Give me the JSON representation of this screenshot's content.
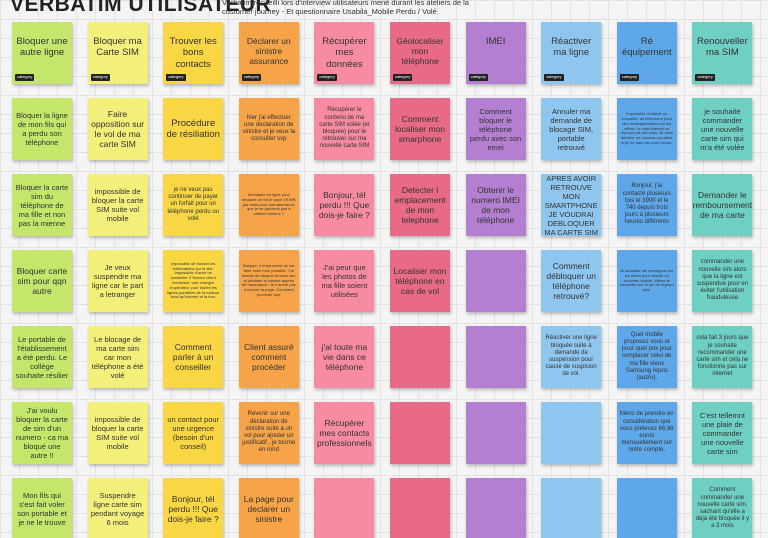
{
  "header": {
    "title": "VERBATIM UTILISATEUR",
    "subtitle": "Verbatim recueilli lors d'interview utilisateurs mené durant les ateliers de la customer journey - Et questionnaire Usabila_Mobile Perdu / Volé"
  },
  "tag": "category",
  "columns": [
    {
      "color": "#c3e66b",
      "notes": [
        "Bloquer une autre ligne",
        "Bloquer la ligne de mon fils qui a perdu son téléphone",
        "Bloquer la carte sim du téléphone de ma fille et non pas la mienne",
        "Bloquer carte sim pour qqn autre",
        "Le portable de l'établissement a été perdu. Le collège souhaite résilier",
        "J'ai voulu bloquer la carte de sim d'un numero - ca ma bloqué une autre !!",
        "Mon fils qui s'est fait voler son portable et je ne le trouve"
      ]
    },
    {
      "color": "#f3ef7b",
      "notes": [
        "Bloquer ma Carte SIM",
        "Faire opposition sur le vol de ma carte SIM",
        "impossible de bloquer la carte SIM suite vol mobile",
        "Je veux suspendre ma ligne car le part a letranger",
        "Le blocage de ma carte sim car mon téléphone a été volé",
        "impossible de bloquer la carte SIM suite vol mobile",
        "Suspendre ligne carte sim pendant voyage 6 mois"
      ]
    },
    {
      "color": "#f8d644",
      "notes": [
        "Trouver les bons contacts",
        "Procédure de résiliation",
        "je ne veux pas continuer de payer un forfait pour un téléphone perdu ou volé",
        "impossible de trouver les informations sur le site. Impossible d'avoir un conseiller !! Service client inexistant, valz changer d'opérateur pour toutes les lignes portables de la maison ainsi qu'internet et la box.",
        "Comment parler à un conseiller",
        "un contact pour une urgence (besoin d'un conseil)",
        "Bonjour, tél perdu !!! Que dois-je faire ?"
      ]
    },
    {
      "color": "#f6a447",
      "notes": [
        "Déclarer un sinistre assurance",
        "hier j'ai effectuer une declaration de sinistre et je veux la consulter svp",
        "formulaire en ligne pour déclarer un vol je paye 19.90€ par mois pour une assurance que je ne parviens pas à utiliser honteux !!",
        "Bonjour, il m'est arrivé de me faire voler mon portable. J'ai besoin de bloquer la carte sim et déclarer le sinistre auprès de l'assurance. Je n'arrive pas à trouver la page. Comment procéder svp.",
        "Client assuré comment procéder",
        "Revenir sur une déclaration de sinistre suite à un vol pour ajouter un justificatif , je tourne en rond",
        "La page pour declarer un sinistre"
      ]
    },
    {
      "color": "#f68ba2",
      "notes": [
        "Récupérer mes données",
        "Récupérer le contenu de ma carte SIM volée (et bloquée) pour le retrouver sur ma nouvelle carte SIM",
        "Bonjour, tél perdu !!! Que dois-je faire ?",
        "J'ai peur que les photos de ma fille soient utilisées",
        "j'ai toute ma vie dans ce téléphone",
        "Récupérer mes contacts professionnels",
        null
      ]
    },
    {
      "color": "#e96a86",
      "notes": [
        "Géolocaliser mon téléphone",
        "Comment localiser mon smarphone",
        "Detecter l emplacement de mon telephone",
        "Localiser mon téléphone en cas de vol",
        null,
        null,
        null
      ]
    },
    {
      "color": "#b47fd0",
      "notes": [
        "IMEI",
        "Comment bloquer le téléphone perdu avec son emei",
        "Obtenir le numero IMEI de mon téléphone",
        null,
        null,
        null,
        null
      ]
    },
    {
      "color": "#8fc6ef",
      "notes": [
        "Réactiver ma ligne",
        "Annuler ma demande de blocage SIM, portable retrouvé",
        "APRES AVOIR RETROUVE MON SMARTPHONE JE VOUDRAI DEBLOQUER MA CARTE SIM",
        "Comment débloquer un téléphone retrouvé?",
        "Réactiver une ligne bloquée suite à demande de suspension pour cause de suspicion de vol.",
        null,
        null
      ]
    },
    {
      "color": "#5ea8e9",
      "notes": [
        "Ré équipement",
        "Impossible d'obtenir un conseiller au téléphone pour des renseignements sur les offres. Le chat internet ne répond pas non plus. Je veux acheter un nouveau portable et je ne sais pas quoi choisir.",
        "Bonjour, j'ai contacté plusieurs fois le 3900 et le 740 depuis trois jours à plusieurs heures différents",
        "Je souhaite me renseigner sur les offres pour obtenir un nouveau mobile. Même le conseiller sur le net ne répond pas.",
        "Quel mobile proposez vous et pour quel prix pour remplacer celui de ma fille vieux Samsung repris (auzru).",
        "Merci de prendre en considération que vous prélevez 66,98 euros mensuellement sur notre compte.",
        null
      ]
    },
    {
      "color": "#6ecfc3",
      "notes": [
        "Renouveller ma SIM",
        "je souhaite commander une nouvelle carte sim qui m'a été volée",
        "Demander le remboursement de ma carte",
        "commander une nouvelle sim alors que la ligne est suspendue pour en éviter l'utilisation frauduleuse",
        "cela fait 3 jours que je souhaite recommander une carte sim et cela ne fonctionne pas sur internet",
        "C'est tellemnt une plaie de commander une nouvelle carte sim",
        "Comment commander une nouvelle carte sim, sachant qu'elle a déjà été bloquée il y a 3 mois"
      ]
    }
  ]
}
